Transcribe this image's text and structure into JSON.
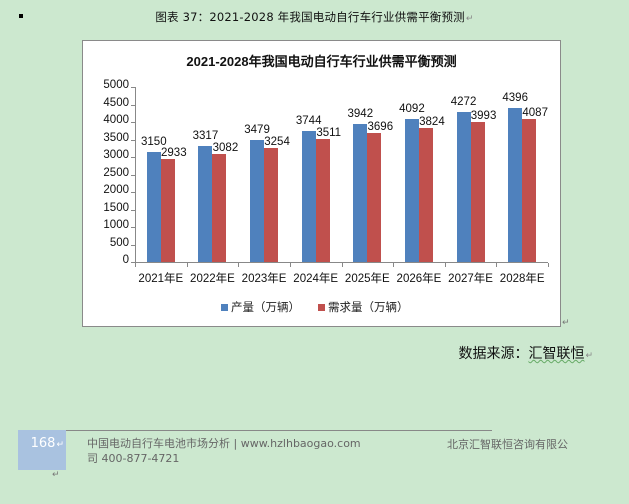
{
  "document": {
    "caption": "图表 37：2021-2028 年我国电动自行车行业供需平衡预测",
    "source_label": "数据来源：",
    "source_value": "汇智联恒",
    "paragraph_mark": "↵"
  },
  "footer": {
    "page_number": "168",
    "left_line1": "中国电动自行车电池市场分析 | www.hzlhbaogao.com",
    "left_line2": "司  400-877-4721",
    "right_text": "北京汇智联恒咨询有限公"
  },
  "colors": {
    "production": "#4F81BD",
    "demand": "#C0504D",
    "page_background": "#cce8cf",
    "page_box": "#a9c2e0"
  },
  "chart_data": {
    "type": "bar",
    "title": "2021-2028年我国电动自行车行业供需平衡预测",
    "categories": [
      "2021年E",
      "2022年E",
      "2023年E",
      "2024年E",
      "2025年E",
      "2026年E",
      "2027年E",
      "2028年E"
    ],
    "series": [
      {
        "name": "产量（万辆）",
        "color": "#4F81BD",
        "values": [
          3150,
          3317,
          3479,
          3744,
          3942,
          4092,
          4272,
          4396
        ]
      },
      {
        "name": "需求量（万辆）",
        "color": "#C0504D",
        "values": [
          2933,
          3082,
          3254,
          3511,
          3696,
          3824,
          3993,
          4087
        ]
      }
    ],
    "yticks": [
      "0",
      "500",
      "1000",
      "1500",
      "2000",
      "2500",
      "3000",
      "3500",
      "4000",
      "4500",
      "5000"
    ],
    "xlabel": "",
    "ylabel": "",
    "ylim": [
      0,
      5000
    ],
    "grid": false,
    "legend_position": "bottom",
    "data_labels": true
  }
}
